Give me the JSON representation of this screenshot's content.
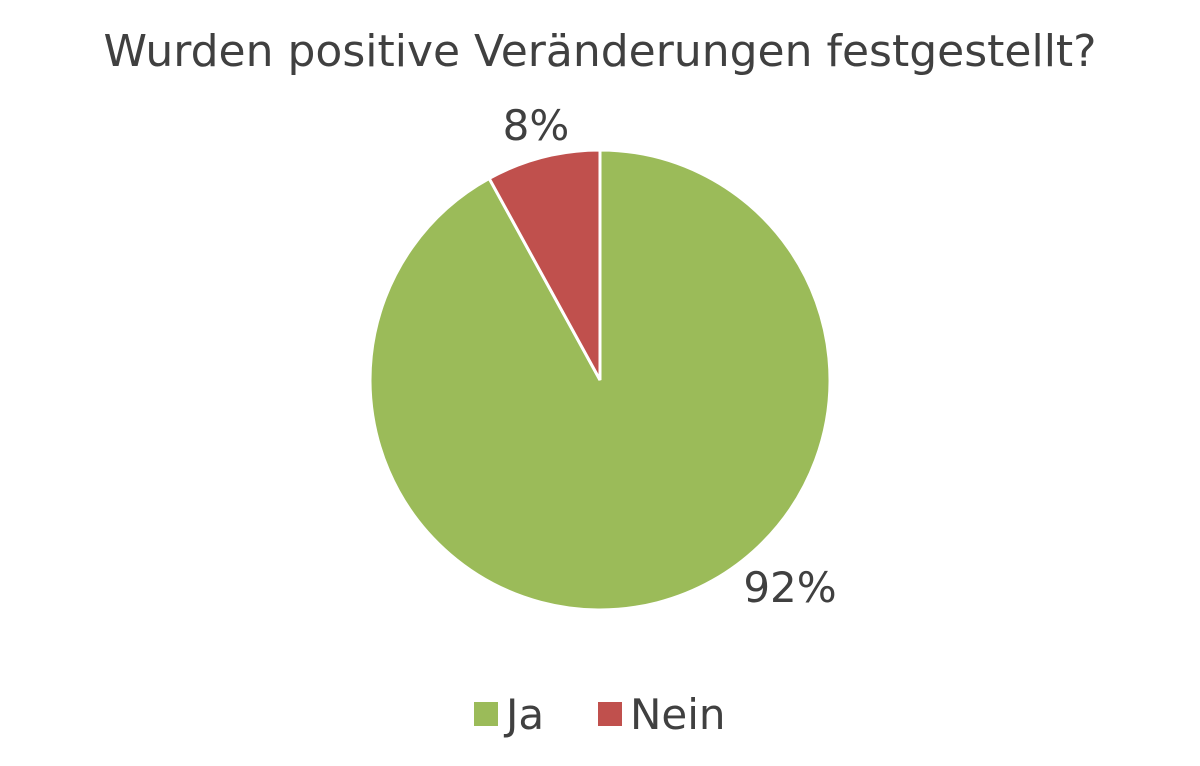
{
  "chart_data": {
    "type": "pie",
    "title": "Wurden positive Veränderungen festgestellt?",
    "categories": [
      "Ja",
      "Nein"
    ],
    "values": [
      92,
      8
    ],
    "labels": [
      "92%",
      "8%"
    ],
    "colors": [
      "#9BBB59",
      "#C0504D"
    ],
    "start": "12 o'clock",
    "direction": "clockwise",
    "legend": {
      "position": "bottom",
      "entries": [
        "Ja",
        "Nein"
      ]
    }
  }
}
